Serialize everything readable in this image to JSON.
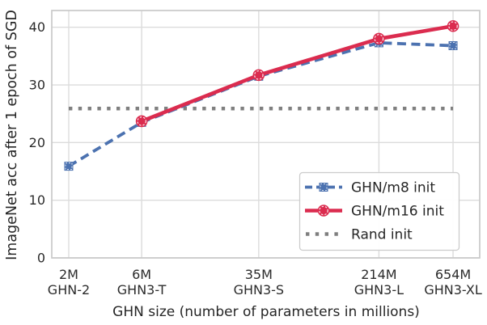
{
  "chart_data": {
    "type": "line",
    "title": "",
    "xlabel": "GHN size (number of parameters in millions)",
    "ylabel": "ImageNet acc after 1 epoch of SGD",
    "x_scale": "log10",
    "x_log_range": [
      0.19,
      2.99
    ],
    "ylim": [
      0,
      42.9
    ],
    "y_ticks": [
      0,
      10,
      20,
      30,
      40
    ],
    "grid": true,
    "legend_position": "lower-right-inside",
    "x_ticks": [
      {
        "value_millions": 2,
        "line1": "2M",
        "line2": "GHN-2"
      },
      {
        "value_millions": 6,
        "line1": "6M",
        "line2": "GHN3-T"
      },
      {
        "value_millions": 35,
        "line1": "35M",
        "line2": "GHN3-S"
      },
      {
        "value_millions": 214,
        "line1": "214M",
        "line2": "GHN3-L"
      },
      {
        "value_millions": 654,
        "line1": "654M",
        "line2": "GHN3-XL"
      }
    ],
    "series": [
      {
        "name": "GHN/m8 init",
        "color": "#4C72B0",
        "style": "dashed",
        "marker": "square",
        "x_millions": [
          2,
          6,
          35,
          214,
          654
        ],
        "values": [
          15.9,
          23.5,
          31.5,
          37.3,
          36.8
        ]
      },
      {
        "name": "GHN/m16 init",
        "color": "#DB2C4F",
        "style": "solid",
        "marker": "circle",
        "x_millions": [
          6,
          35,
          214,
          654
        ],
        "values": [
          23.7,
          31.7,
          38.0,
          40.2
        ]
      },
      {
        "name": "Rand init",
        "color": "#7F7F7F",
        "style": "dotted",
        "marker": "none",
        "x_millions": [
          2,
          654
        ],
        "values": [
          25.9,
          25.9
        ]
      }
    ],
    "colors": {
      "grid": "#DCDCDC",
      "spine": "#C9C9C9",
      "text": "#262626",
      "background": "#FFFFFF",
      "marker_ring": "#FFFFFF"
    }
  }
}
